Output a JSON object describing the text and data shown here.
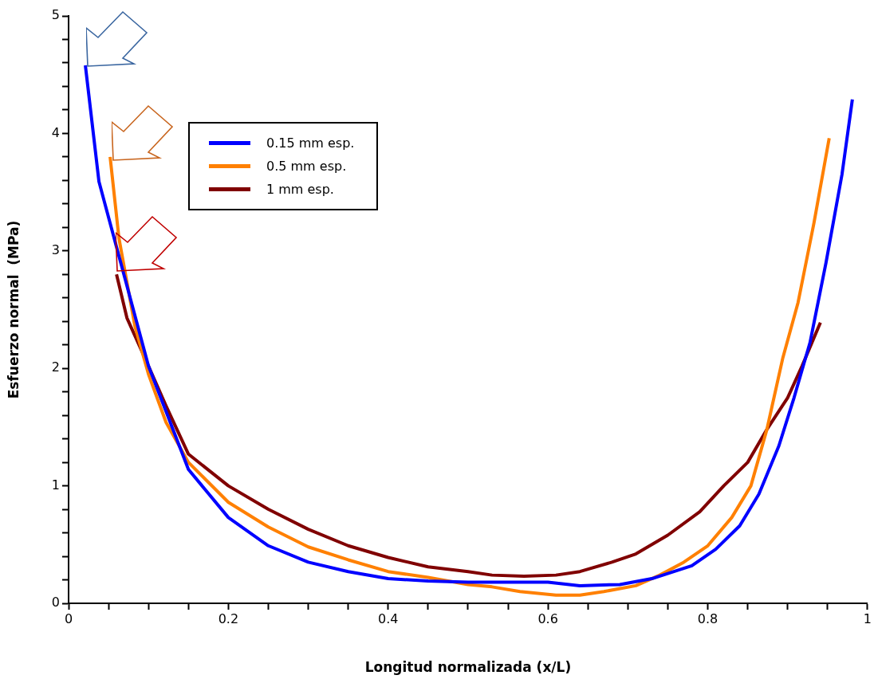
{
  "chart_data": {
    "type": "line",
    "xlabel": "Longitud normalizada (x/L)",
    "ylabel": "Esfuerzo normal  (MPa)",
    "xlim": [
      0,
      1
    ],
    "ylim": [
      0,
      5
    ],
    "xticks": [
      0,
      {
        "value": 0.05,
        "label": null
      },
      {
        "value": 0.1,
        "label": null
      },
      {
        "value": 0.15,
        "label": null
      },
      0.2,
      {
        "value": 0.25,
        "label": null
      },
      {
        "value": 0.3,
        "label": null
      },
      {
        "value": 0.35,
        "label": null
      },
      0.4,
      {
        "value": 0.45,
        "label": null
      },
      {
        "value": 0.5,
        "label": null
      },
      {
        "value": 0.55,
        "label": null
      },
      0.6,
      {
        "value": 0.65,
        "label": null
      },
      {
        "value": 0.7,
        "label": null
      },
      {
        "value": 0.75,
        "label": null
      },
      0.8,
      {
        "value": 0.85,
        "label": null
      },
      {
        "value": 0.9,
        "label": null
      },
      {
        "value": 0.95,
        "label": null
      },
      1
    ],
    "yticks": [
      0,
      {
        "value": 0.2,
        "label": null
      },
      {
        "value": 0.4,
        "label": null
      },
      {
        "value": 0.6,
        "label": null
      },
      {
        "value": 0.8,
        "label": null
      },
      1,
      {
        "value": 1.2,
        "label": null
      },
      {
        "value": 1.4,
        "label": null
      },
      {
        "value": 1.6,
        "label": null
      },
      {
        "value": 1.8,
        "label": null
      },
      2,
      {
        "value": 2.2,
        "label": null
      },
      {
        "value": 2.4,
        "label": null
      },
      {
        "value": 2.6,
        "label": null
      },
      {
        "value": 2.8,
        "label": null
      },
      3,
      {
        "value": 3.2,
        "label": null
      },
      {
        "value": 3.4,
        "label": null
      },
      {
        "value": 3.6,
        "label": null
      },
      {
        "value": 3.8,
        "label": null
      },
      4,
      {
        "value": 4.2,
        "label": null
      },
      {
        "value": 4.4,
        "label": null
      },
      {
        "value": 4.6,
        "label": null
      },
      {
        "value": 4.8,
        "label": null
      },
      5
    ],
    "grid": false,
    "legend": "top left",
    "marker": "none",
    "line_style": "solid",
    "series": [
      {
        "name": "0.15 mm esp.",
        "color": "#0000ff",
        "x": [
          0.021,
          0.038,
          0.1,
          0.15,
          0.2,
          0.25,
          0.3,
          0.35,
          0.4,
          0.45,
          0.5,
          0.55,
          0.6,
          0.64,
          0.69,
          0.73,
          0.78,
          0.81,
          0.84,
          0.864,
          0.889,
          0.908,
          0.928,
          0.948,
          0.968,
          0.981
        ],
        "values": [
          4.58,
          3.59,
          2.02,
          1.14,
          0.73,
          0.49,
          0.35,
          0.27,
          0.21,
          0.19,
          0.18,
          0.18,
          0.18,
          0.15,
          0.16,
          0.21,
          0.32,
          0.46,
          0.66,
          0.93,
          1.34,
          1.75,
          2.22,
          2.9,
          3.65,
          4.29
        ]
      },
      {
        "name": "0.5 mm esp.",
        "color": "#ff8000",
        "x": [
          0.052,
          0.063,
          0.083,
          0.1,
          0.122,
          0.15,
          0.2,
          0.25,
          0.3,
          0.35,
          0.4,
          0.45,
          0.5,
          0.53,
          0.565,
          0.61,
          0.64,
          0.67,
          0.71,
          0.74,
          0.77,
          0.8,
          0.83,
          0.854,
          0.874,
          0.894,
          0.913,
          0.933,
          0.952
        ],
        "values": [
          3.8,
          3.11,
          2.36,
          1.95,
          1.54,
          1.2,
          0.86,
          0.65,
          0.48,
          0.37,
          0.27,
          0.22,
          0.16,
          0.14,
          0.1,
          0.07,
          0.07,
          0.1,
          0.15,
          0.24,
          0.35,
          0.49,
          0.73,
          1.0,
          1.48,
          2.09,
          2.56,
          3.24,
          3.96
        ]
      },
      {
        "name": "1 mm esp.",
        "color": "#800000",
        "x": [
          0.06,
          0.073,
          0.1,
          0.122,
          0.15,
          0.2,
          0.25,
          0.3,
          0.35,
          0.4,
          0.45,
          0.5,
          0.53,
          0.57,
          0.61,
          0.64,
          0.68,
          0.71,
          0.75,
          0.79,
          0.82,
          0.85,
          0.874,
          0.9,
          0.918,
          0.941
        ],
        "values": [
          2.8,
          2.43,
          2.02,
          1.68,
          1.27,
          1.0,
          0.8,
          0.63,
          0.49,
          0.39,
          0.31,
          0.27,
          0.24,
          0.23,
          0.24,
          0.27,
          0.35,
          0.42,
          0.58,
          0.78,
          1.0,
          1.2,
          1.48,
          1.75,
          2.02,
          2.39
        ]
      }
    ]
  }
}
